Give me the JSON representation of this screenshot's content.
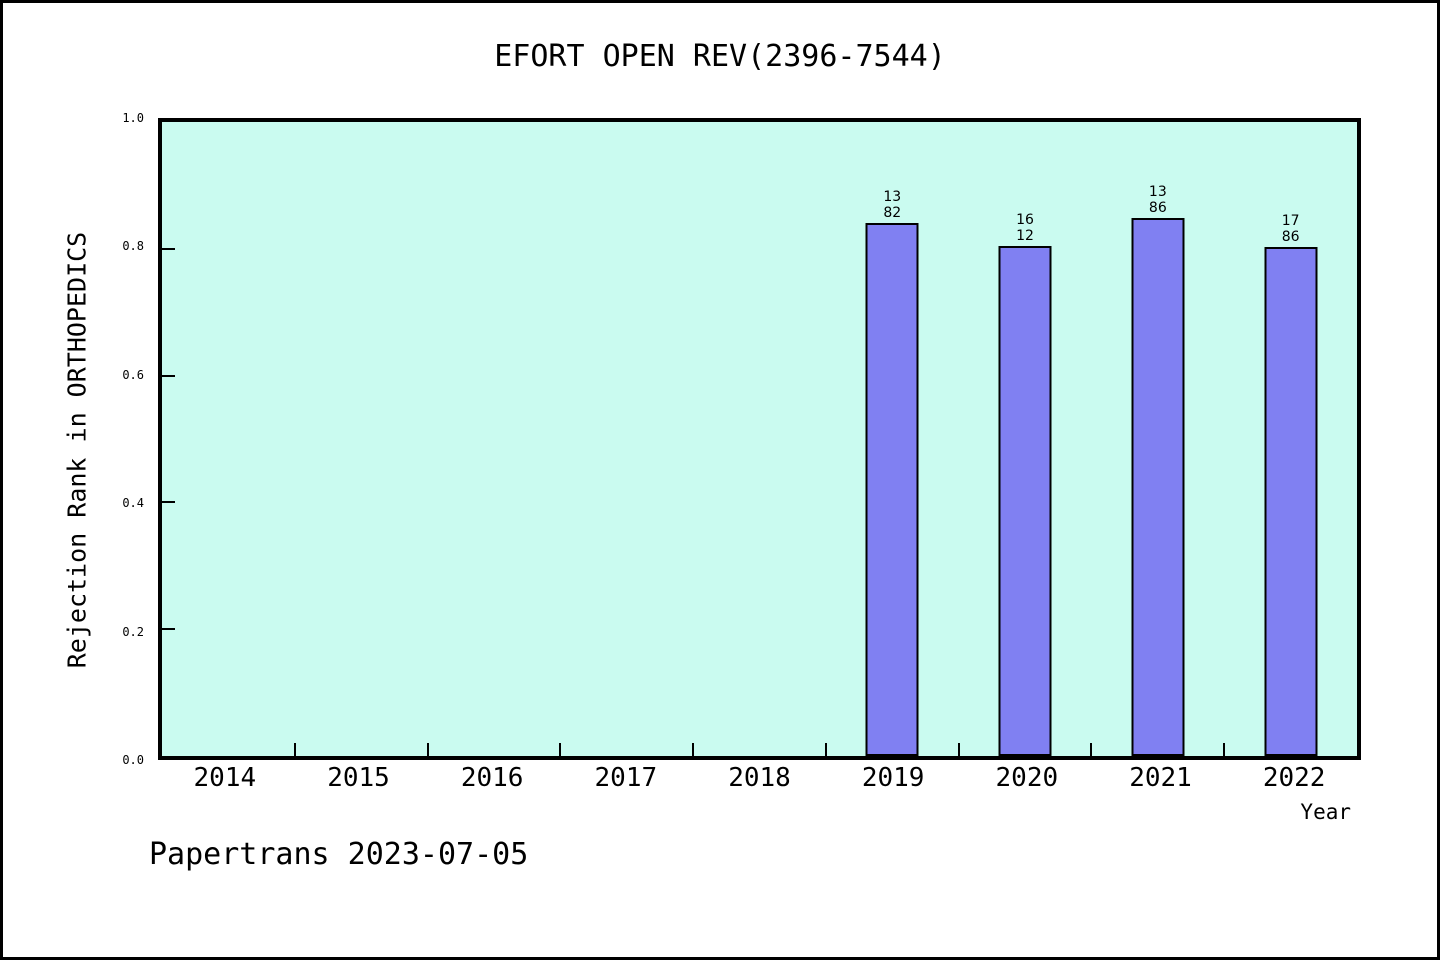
{
  "watermark": {
    "text": "Papertrans 2023-07-05"
  },
  "chart_data": {
    "type": "bar",
    "title": "EFORT OPEN REV(2396-7544)",
    "xlabel": "Year",
    "ylabel": "Rejection Rank in ORTHOPEDICS",
    "categories": [
      "2014",
      "2015",
      "2016",
      "2017",
      "2018",
      "2019",
      "2020",
      "2021",
      "2022"
    ],
    "values": [
      null,
      null,
      null,
      null,
      null,
      0.8415,
      0.8049,
      0.8488,
      0.8023
    ],
    "bar_labels": [
      null,
      null,
      null,
      null,
      null,
      "13\n82",
      "16\n12",
      "13\n86",
      "17\n86"
    ],
    "ylim": [
      0.0,
      1.0
    ],
    "ytick_labels": [
      "0.0",
      "0.2",
      "0.4",
      "0.6",
      "0.8",
      "1.0"
    ],
    "legend": "none",
    "grid": "off",
    "colors": {
      "bar_fill": "#8080f2",
      "bar_border": "#000000",
      "plot_background": "#cafbf0",
      "page_background": "#ffffff",
      "axis": "#000000",
      "text": "#000000"
    }
  }
}
